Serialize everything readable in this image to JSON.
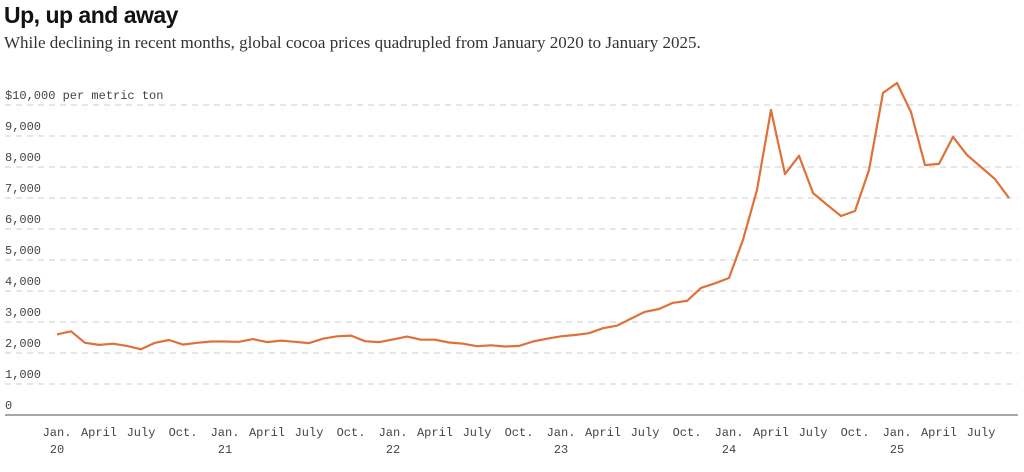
{
  "title": "Up, up and away",
  "subtitle": "While declining in recent months, global cocoa prices quadrupled from January 2020 to January 2025.",
  "chart_data": {
    "type": "line",
    "title": "Up, up and away",
    "subtitle": "While declining in recent months, global cocoa prices quadrupled from January 2020 to January 2025.",
    "ylabel": "per metric ton",
    "ylim": [
      0,
      10000
    ],
    "grid": true,
    "line_color": "#e0703a",
    "y_ticks": [
      {
        "value": 0,
        "label": "0"
      },
      {
        "value": 1000,
        "label": "1,000"
      },
      {
        "value": 2000,
        "label": "2,000"
      },
      {
        "value": 3000,
        "label": "3,000"
      },
      {
        "value": 4000,
        "label": "4,000"
      },
      {
        "value": 5000,
        "label": "5,000"
      },
      {
        "value": 6000,
        "label": "6,000"
      },
      {
        "value": 7000,
        "label": "7,000"
      },
      {
        "value": 8000,
        "label": "8,000"
      },
      {
        "value": 9000,
        "label": "9,000"
      },
      {
        "value": 10000,
        "label": "$10,000 per metric ton"
      }
    ],
    "x_ticks": [
      {
        "date": "2020-01",
        "label": "Jan.",
        "year": "20"
      },
      {
        "date": "2020-04",
        "label": "April"
      },
      {
        "date": "2020-07",
        "label": "July"
      },
      {
        "date": "2020-10",
        "label": "Oct."
      },
      {
        "date": "2021-01",
        "label": "Jan.",
        "year": "21"
      },
      {
        "date": "2021-04",
        "label": "April"
      },
      {
        "date": "2021-07",
        "label": "July"
      },
      {
        "date": "2021-10",
        "label": "Oct."
      },
      {
        "date": "2022-01",
        "label": "Jan.",
        "year": "22"
      },
      {
        "date": "2022-04",
        "label": "April"
      },
      {
        "date": "2022-07",
        "label": "July"
      },
      {
        "date": "2022-10",
        "label": "Oct."
      },
      {
        "date": "2023-01",
        "label": "Jan.",
        "year": "23"
      },
      {
        "date": "2023-04",
        "label": "April"
      },
      {
        "date": "2023-07",
        "label": "July"
      },
      {
        "date": "2023-10",
        "label": "Oct."
      },
      {
        "date": "2024-01",
        "label": "Jan.",
        "year": "24"
      },
      {
        "date": "2024-04",
        "label": "April"
      },
      {
        "date": "2024-07",
        "label": "July"
      },
      {
        "date": "2024-10",
        "label": "Oct."
      },
      {
        "date": "2025-01",
        "label": "Jan.",
        "year": "25"
      },
      {
        "date": "2025-04",
        "label": "April"
      },
      {
        "date": "2025-07",
        "label": "July"
      }
    ],
    "x_start": "2020-01",
    "values": [
      2600,
      2700,
      2330,
      2260,
      2300,
      2230,
      2120,
      2330,
      2420,
      2270,
      2330,
      2370,
      2370,
      2360,
      2450,
      2350,
      2400,
      2360,
      2320,
      2460,
      2540,
      2560,
      2380,
      2350,
      2440,
      2530,
      2430,
      2430,
      2340,
      2300,
      2220,
      2250,
      2210,
      2230,
      2370,
      2460,
      2540,
      2580,
      2640,
      2800,
      2880,
      3110,
      3330,
      3420,
      3620,
      3680,
      4100,
      4250,
      4420,
      5650,
      7260,
      9840,
      7770,
      8360,
      7160,
      6780,
      6420,
      6580,
      7900,
      10390,
      10710,
      9770,
      8060,
      8100,
      8970,
      8390,
      8000,
      7610,
      7000
    ]
  }
}
